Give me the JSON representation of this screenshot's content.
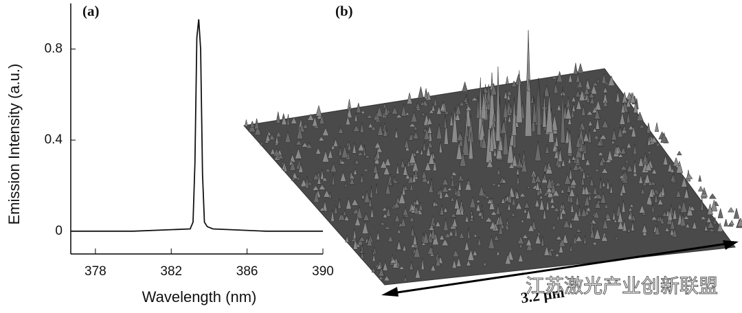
{
  "chart_data": {
    "type": "line",
    "panel_label": "(a)",
    "x_label": "Wavelength (nm)",
    "y_label": "Emission Intensity (a.u.)",
    "x": [
      376.7,
      380,
      383,
      383.15,
      383.25,
      383.35,
      383.45,
      383.55,
      383.65,
      383.75,
      383.9,
      384.2,
      387,
      390
    ],
    "series": [
      {
        "color": "#111111",
        "values": [
          0,
          0,
          0.01,
          0.04,
          0.3,
          0.85,
          0.93,
          0.8,
          0.25,
          0.04,
          0.02,
          0.01,
          0,
          0
        ]
      }
    ],
    "xlim": [
      376.7,
      390
    ],
    "xticks": [
      378,
      382,
      386,
      390
    ],
    "ylim": [
      -0.1,
      1.0
    ],
    "yticks": [
      0,
      0.4,
      0.8
    ]
  },
  "panel_b": {
    "label": "(b)",
    "scale_label": "3.2 μm"
  },
  "watermark": "江苏激光产业创新联盟"
}
